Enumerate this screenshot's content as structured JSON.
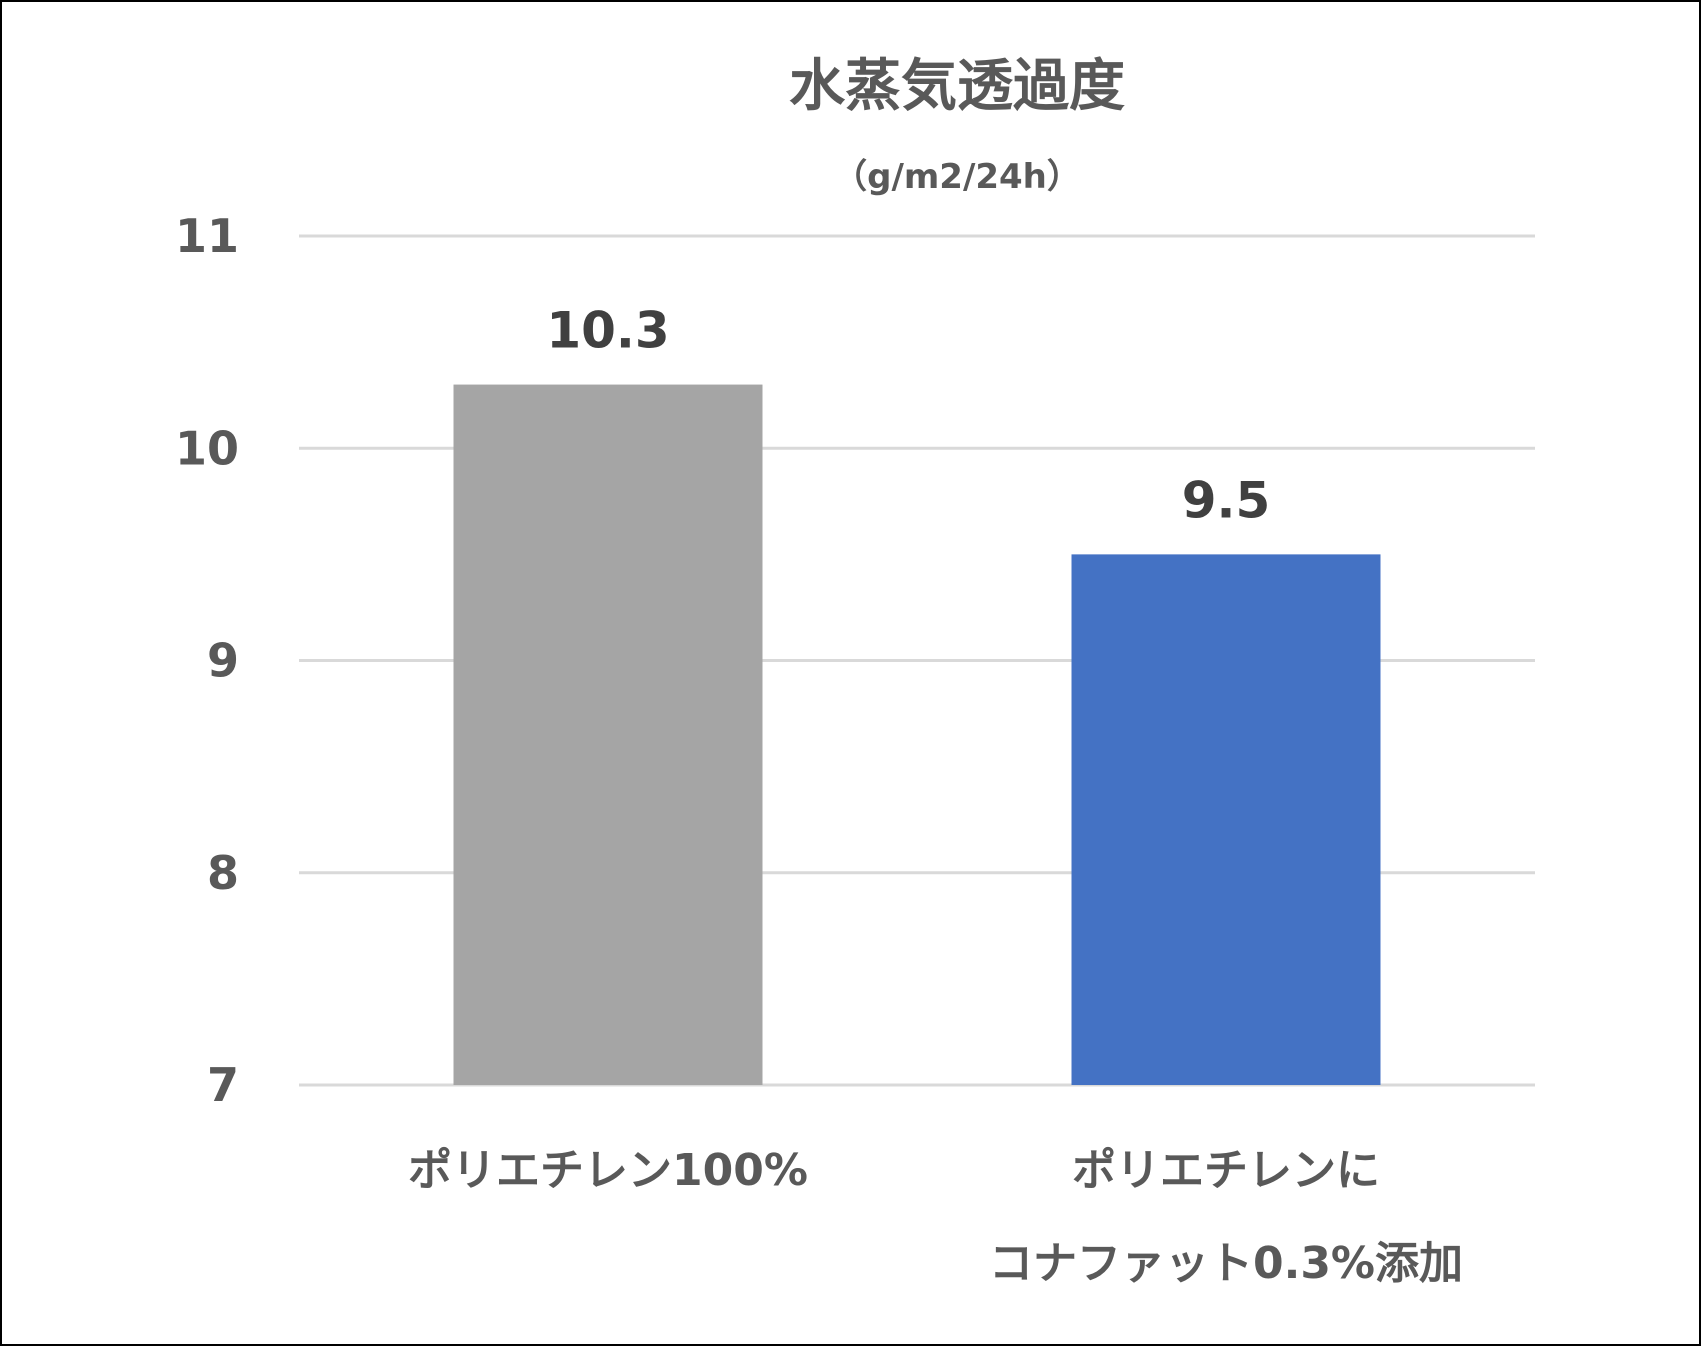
{
  "chart_data": {
    "type": "bar",
    "title": "水蒸気透過度",
    "subtitle": "（g/m2/24h）",
    "categories": [
      [
        "ポリエチレン100%"
      ],
      [
        "ポリエチレンに",
        "コナファット0.3%添加"
      ]
    ],
    "values": [
      10.3,
      9.5
    ],
    "data_labels": [
      "10.3",
      "9.5"
    ],
    "bar_colors": [
      "#a5a5a5",
      "#4472c4"
    ],
    "ylim": [
      7,
      11
    ],
    "yticks": [
      7,
      8,
      9,
      10,
      11
    ],
    "ytick_labels": [
      "7",
      "8",
      "9",
      "10",
      "11"
    ],
    "grid": true,
    "legend": "none"
  }
}
